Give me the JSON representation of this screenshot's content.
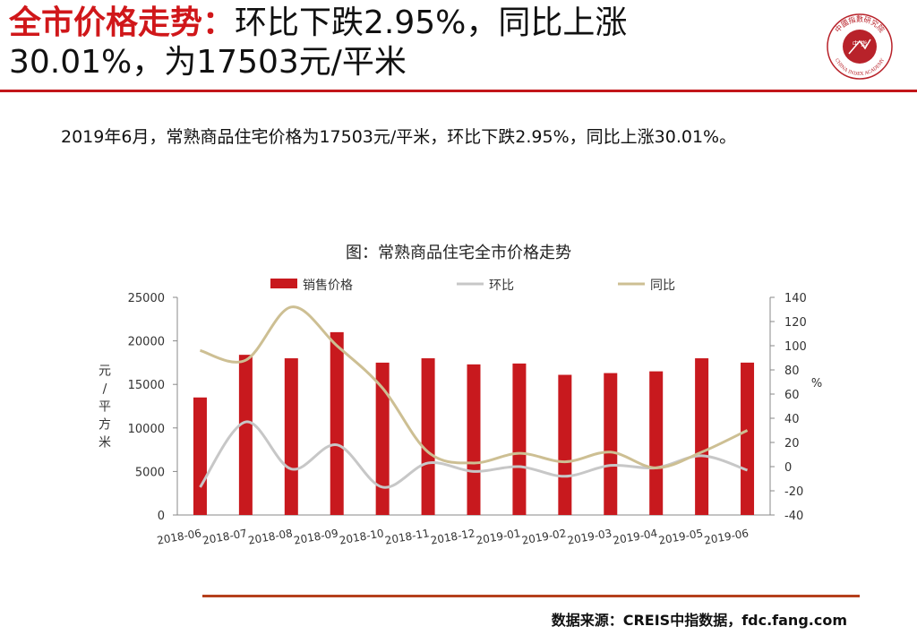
{
  "header": {
    "title_red": "全市价格走势：",
    "title_rest_line1": "环比下跌2.95%，同比上涨",
    "title_line2": "30.01%，为17503元/平米"
  },
  "summary": "2019年6月，常熟商品住宅价格为17503元/平米，环比下跌2.95%，同比上涨30.01%。",
  "logo": {
    "top_text": "中國指數研究院",
    "center_text": "中 指",
    "bottom_text": "CHINA INDEX ACADEMY"
  },
  "colors": {
    "accent": "#d0171a",
    "bar": "#c8191e",
    "mom_line": "#c7c7c7",
    "yoy_line": "#cdbf93",
    "footer_rule": "#b5401c"
  },
  "chart_data": {
    "type": "bar",
    "title": "图：常熟商品住宅全市价格走势",
    "categories": [
      "2018-06",
      "2018-07",
      "2018-08",
      "2018-09",
      "2018-10",
      "2018-11",
      "2018-12",
      "2019-01",
      "2019-02",
      "2019-03",
      "2019-04",
      "2019-05",
      "2019-06"
    ],
    "series": [
      {
        "name": "销售价格",
        "axis": "left",
        "kind": "bar",
        "values": [
          13500,
          18400,
          18000,
          21000,
          17500,
          18000,
          17300,
          17400,
          16100,
          16300,
          16500,
          18000,
          17503
        ]
      },
      {
        "name": "环比",
        "axis": "right",
        "kind": "line",
        "values": [
          -17,
          37,
          -2,
          18,
          -17,
          3,
          -4,
          0,
          -8,
          1,
          -1,
          9,
          -2.95
        ]
      },
      {
        "name": "同比",
        "axis": "right",
        "kind": "line",
        "values": [
          96,
          88,
          132,
          100,
          65,
          12,
          3,
          11,
          4,
          12,
          -1,
          12,
          30.01
        ]
      }
    ],
    "left_axis": {
      "label": "元/平方米",
      "ylim": [
        0,
        25000
      ],
      "ticks": [
        "0",
        "5000",
        "10000",
        "15000",
        "20000",
        "25000"
      ]
    },
    "right_axis": {
      "label": "%",
      "ylim": [
        -40,
        140
      ],
      "ticks": [
        "-40",
        "-20",
        "0",
        "20",
        "40",
        "60",
        "80",
        "100",
        "120",
        "140"
      ]
    },
    "legend": "top",
    "grid": false
  },
  "footer": {
    "source": "数据来源：CREIS中指数据，fdc.fang.com"
  }
}
